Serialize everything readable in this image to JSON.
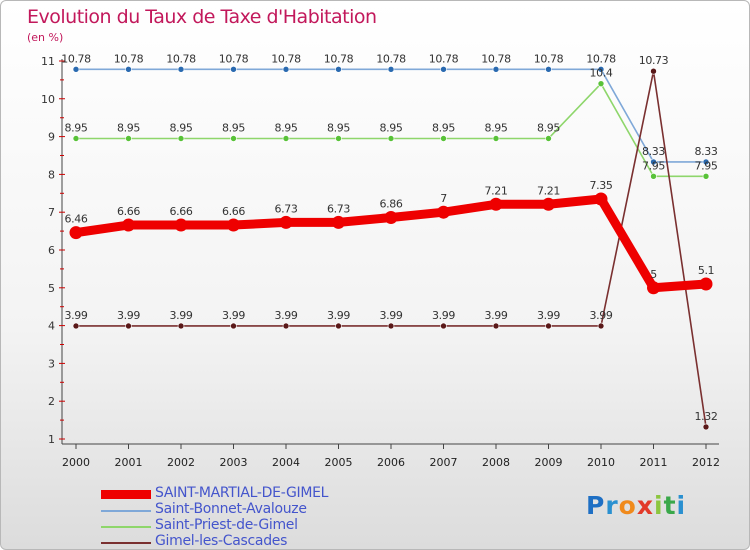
{
  "chart_data": {
    "type": "line",
    "title": "Evolution du Taux de Taxe d'Habitation",
    "unit_label": "(en %)",
    "ylim": [
      1,
      11
    ],
    "y_ticks": [
      "1",
      "2",
      "3",
      "4",
      "5",
      "6",
      "7",
      "8",
      "9",
      "10",
      "11"
    ],
    "x": [
      "2000",
      "2001",
      "2002",
      "2003",
      "2004",
      "2005",
      "2006",
      "2007",
      "2008",
      "2009",
      "2010",
      "2011",
      "2012"
    ],
    "grid": false,
    "legend_position": "bottom-left",
    "series": [
      {
        "name": "SAINT-MARTIAL-DE-GIMEL",
        "color": "#ee0000",
        "values": [
          6.46,
          6.66,
          6.66,
          6.66,
          6.73,
          6.73,
          6.86,
          7,
          7.21,
          7.21,
          7.35,
          5,
          5.1
        ],
        "labels": [
          "6.46",
          "6.66",
          "6.66",
          "6.66",
          "6.73",
          "6.73",
          "6.86",
          "7",
          "7.21",
          "7.21",
          "7.35",
          "5",
          "5.1"
        ]
      },
      {
        "name": "Saint-Bonnet-Avalouze",
        "color": "#7fa8d8",
        "marker_color": "#2a6ab0",
        "values": [
          10.78,
          10.78,
          10.78,
          10.78,
          10.78,
          10.78,
          10.78,
          10.78,
          10.78,
          10.78,
          10.78,
          8.33,
          8.33
        ],
        "labels": [
          "10.78",
          "10.78",
          "10.78",
          "10.78",
          "10.78",
          "10.78",
          "10.78",
          "10.78",
          "10.78",
          "10.78",
          "10.78",
          "8.33",
          "8.33"
        ]
      },
      {
        "name": "Saint-Priest-de-Gimel",
        "color": "#8ed66b",
        "marker_color": "#58c238",
        "values": [
          8.95,
          8.95,
          8.95,
          8.95,
          8.95,
          8.95,
          8.95,
          8.95,
          8.95,
          8.95,
          10.4,
          7.95,
          7.95
        ],
        "labels": [
          "8.95",
          "8.95",
          "8.95",
          "8.95",
          "8.95",
          "8.95",
          "8.95",
          "8.95",
          "8.95",
          "8.95",
          "10.4",
          "7.95",
          "7.95"
        ]
      },
      {
        "name": "Gimel-les-Cascades",
        "color": "#7a3030",
        "marker_color": "#5a1818",
        "values": [
          3.99,
          3.99,
          3.99,
          3.99,
          3.99,
          3.99,
          3.99,
          3.99,
          3.99,
          3.99,
          3.99,
          10.73,
          1.32
        ],
        "labels": [
          "3.99",
          "3.99",
          "3.99",
          "3.99",
          "3.99",
          "3.99",
          "3.99",
          "3.99",
          "3.99",
          "3.99",
          "3.99",
          "10.73",
          "1.32"
        ]
      }
    ]
  },
  "brand": {
    "letters": [
      {
        "char": "P",
        "color": "#1e6fc4"
      },
      {
        "char": "r",
        "color": "#2a90d0"
      },
      {
        "char": "o",
        "color": "#f08a1c"
      },
      {
        "char": "x",
        "color": "#e23a2a"
      },
      {
        "char": "i",
        "color": "#8cc63f"
      },
      {
        "char": "t",
        "color": "#3aa84a"
      },
      {
        "char": "i",
        "color": "#2a90d0"
      }
    ]
  }
}
